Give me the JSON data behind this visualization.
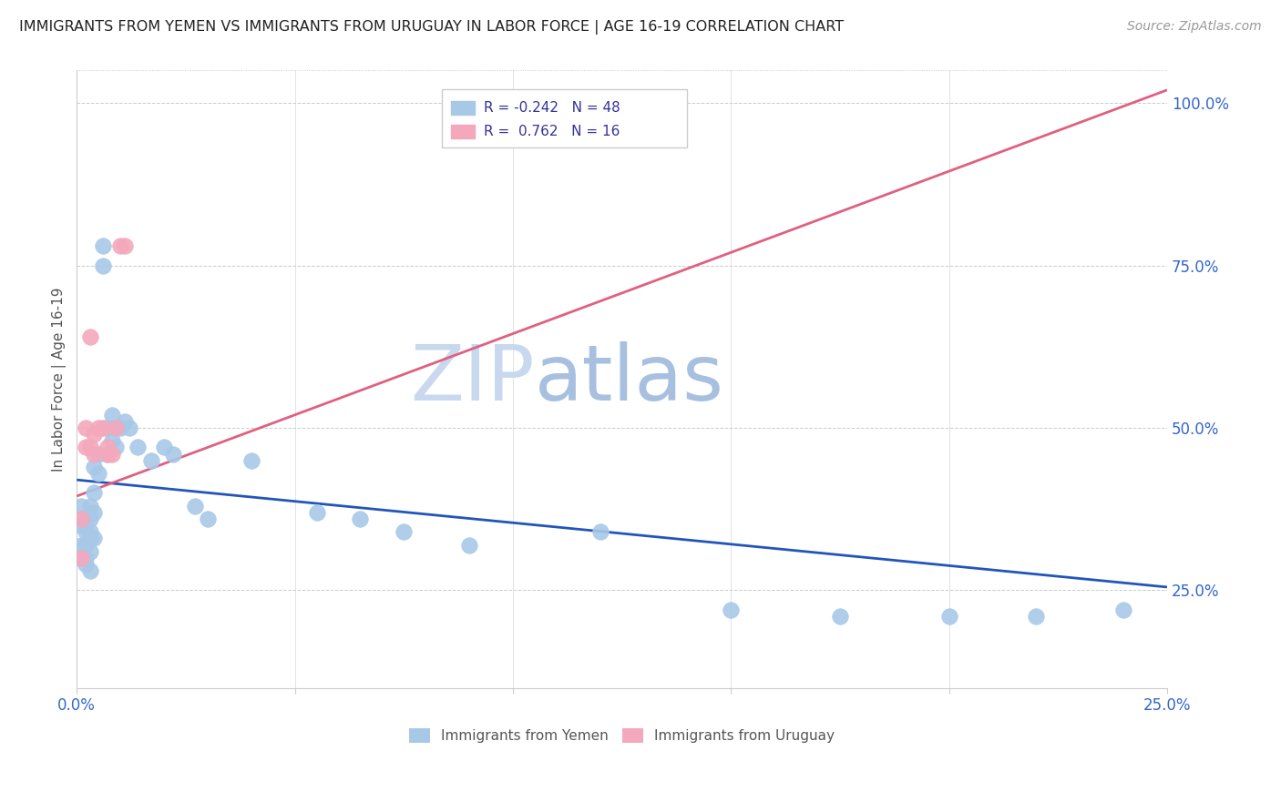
{
  "title": "IMMIGRANTS FROM YEMEN VS IMMIGRANTS FROM URUGUAY IN LABOR FORCE | AGE 16-19 CORRELATION CHART",
  "source": "Source: ZipAtlas.com",
  "ylabel": "In Labor Force | Age 16-19",
  "right_yticks": [
    0.25,
    0.5,
    0.75,
    1.0
  ],
  "right_yticklabels": [
    "25.0%",
    "50.0%",
    "75.0%",
    "100.0%"
  ],
  "xmin": 0.0,
  "xmax": 0.25,
  "ymin": 0.1,
  "ymax": 1.05,
  "yemen_color": "#a8c8e8",
  "uruguay_color": "#f4a8bc",
  "yemen_line_color": "#2255bb",
  "uruguay_line_color": "#e06080",
  "watermark_zip_color": "#c8d8ee",
  "watermark_atlas_color": "#a8c0e0",
  "yemen_N": 48,
  "uruguay_N": 16,
  "yemen_R": -0.242,
  "uruguay_R": 0.762,
  "yemen_trend_x0": 0.0,
  "yemen_trend_y0": 0.42,
  "yemen_trend_x1": 0.25,
  "yemen_trend_y1": 0.255,
  "uruguay_trend_x0": 0.0,
  "uruguay_trend_y0": 0.395,
  "uruguay_trend_x1": 0.25,
  "uruguay_trend_y1": 1.02,
  "yemen_x": [
    0.001,
    0.001,
    0.001,
    0.001,
    0.002,
    0.002,
    0.002,
    0.002,
    0.002,
    0.003,
    0.003,
    0.003,
    0.003,
    0.003,
    0.003,
    0.004,
    0.004,
    0.004,
    0.004,
    0.005,
    0.005,
    0.006,
    0.006,
    0.007,
    0.007,
    0.008,
    0.008,
    0.009,
    0.01,
    0.011,
    0.012,
    0.014,
    0.017,
    0.02,
    0.022,
    0.027,
    0.03,
    0.04,
    0.055,
    0.065,
    0.075,
    0.09,
    0.12,
    0.15,
    0.175,
    0.2,
    0.22,
    0.24
  ],
  "yemen_y": [
    0.38,
    0.35,
    0.32,
    0.3,
    0.36,
    0.34,
    0.32,
    0.3,
    0.29,
    0.38,
    0.36,
    0.34,
    0.33,
    0.31,
    0.28,
    0.44,
    0.4,
    0.37,
    0.33,
    0.46,
    0.43,
    0.78,
    0.75,
    0.5,
    0.46,
    0.52,
    0.48,
    0.47,
    0.5,
    0.51,
    0.5,
    0.47,
    0.45,
    0.47,
    0.46,
    0.38,
    0.36,
    0.45,
    0.37,
    0.36,
    0.34,
    0.32,
    0.34,
    0.22,
    0.21,
    0.21,
    0.21,
    0.22
  ],
  "uruguay_x": [
    0.001,
    0.001,
    0.002,
    0.002,
    0.003,
    0.003,
    0.004,
    0.004,
    0.005,
    0.006,
    0.007,
    0.007,
    0.008,
    0.009,
    0.01,
    0.011
  ],
  "uruguay_y": [
    0.36,
    0.3,
    0.5,
    0.47,
    0.64,
    0.47,
    0.49,
    0.46,
    0.5,
    0.5,
    0.47,
    0.46,
    0.46,
    0.5,
    0.78,
    0.78
  ]
}
